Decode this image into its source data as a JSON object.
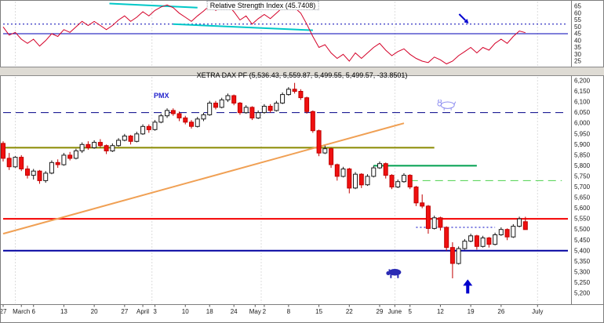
{
  "window": {
    "bg": "#ffffff",
    "band_bg": "#dedbd4"
  },
  "chart_data": [
    {
      "type": "line",
      "title": "Relative Strength Index (45.7408)",
      "ylim": [
        20,
        70
      ],
      "y_ticks": [
        65,
        60,
        55,
        50,
        45,
        40,
        35,
        30,
        25
      ],
      "grid": "month-vertical",
      "legend_position": "none",
      "series": [
        {
          "name": "RSI",
          "color": "#d40028",
          "values": [
            50,
            44,
            46,
            41,
            38,
            41,
            36,
            40,
            45,
            43,
            48,
            46,
            50,
            54,
            51,
            54,
            51,
            48,
            51,
            55,
            58,
            54,
            57,
            61,
            58,
            62,
            64.5,
            66,
            64,
            60,
            57,
            54,
            58,
            61.5,
            65.5,
            62,
            64,
            66,
            61,
            55,
            58,
            52,
            56,
            59,
            56,
            60,
            64,
            66,
            64,
            60,
            52,
            43,
            35,
            37,
            31,
            27,
            30,
            25,
            31,
            27,
            31,
            35,
            38,
            33,
            29,
            32,
            34,
            30,
            27,
            25,
            24,
            28,
            26,
            23,
            25,
            29,
            32,
            35,
            31,
            35,
            33,
            38,
            41,
            38,
            43,
            47,
            45.74
          ]
        }
      ],
      "overlays": {
        "hlines": [
          {
            "value": 52,
            "style": "dot",
            "color": "#0000b4",
            "from": 0,
            "to": 93,
            "width": 1,
            "name": "rsi-dotted-level"
          },
          {
            "value": 45,
            "style": "solid",
            "color": "#0000b4",
            "from": 0,
            "to": 93,
            "width": 1,
            "name": "rsi-solid-level"
          }
        ],
        "trendlines": [
          {
            "from": [
              17.5,
              67
            ],
            "to": [
              32,
              64
            ],
            "color": "#00c8c8",
            "width": 2,
            "name": "rsi-upper-trendline"
          },
          {
            "from": [
              28,
              52
            ],
            "to": [
              51,
              47.5
            ],
            "color": "#00c8c8",
            "width": 2,
            "name": "rsi-support-trendline"
          }
        ],
        "arrow": {
          "slot": 76,
          "value": 55,
          "direction": "down-right",
          "color": "#0000d0"
        }
      }
    },
    {
      "type": "candlestick",
      "title": "XETRA DAX PF (5,536.43, 5,559.87, 5,499.55, 5,499.57, -33.8501)",
      "corner_label": "PMX",
      "ylim": [
        5200,
        6200
      ],
      "y_ticks": [
        "6,200",
        "6,150",
        "6,100",
        "6,050",
        "6,000",
        "5,950",
        "5,900",
        "5,850",
        "5,800",
        "5,750",
        "5,700",
        "5,650",
        "5,600",
        "5,550",
        "5,500",
        "5,450",
        "5,400",
        "5,350",
        "5,300",
        "5,250",
        "5,200"
      ],
      "slots": 94,
      "grid_slots": [
        2,
        24.5,
        42.5,
        64.5,
        88
      ],
      "x_ticks": [
        {
          "label": "27",
          "slot": 0
        },
        {
          "label": "March",
          "slot": 3
        },
        {
          "label": "6",
          "slot": 5
        },
        {
          "label": "13",
          "slot": 10
        },
        {
          "label": "20",
          "slot": 15
        },
        {
          "label": "27",
          "slot": 20
        },
        {
          "label": "April",
          "slot": 23
        },
        {
          "label": "3",
          "slot": 25
        },
        {
          "label": "10",
          "slot": 30
        },
        {
          "label": "18",
          "slot": 34
        },
        {
          "label": "24",
          "slot": 38
        },
        {
          "label": "May",
          "slot": 41.5
        },
        {
          "label": "2",
          "slot": 43
        },
        {
          "label": "8",
          "slot": 47
        },
        {
          "label": "15",
          "slot": 52
        },
        {
          "label": "22",
          "slot": 57
        },
        {
          "label": "29",
          "slot": 62
        },
        {
          "label": "June",
          "slot": 64.5
        },
        {
          "label": "5",
          "slot": 67
        },
        {
          "label": "12",
          "slot": 72
        },
        {
          "label": "19",
          "slot": 77
        },
        {
          "label": "26",
          "slot": 82
        },
        {
          "label": "July",
          "slot": 88
        }
      ],
      "up_color": "#ffffff",
      "up_border": "#1a1a1a",
      "down_color": "#f01010",
      "down_border": "#c00000",
      "ohlc": [
        [
          5905,
          5915,
          5820,
          5835
        ],
        [
          5835,
          5860,
          5780,
          5795
        ],
        [
          5795,
          5845,
          5790,
          5840
        ],
        [
          5840,
          5850,
          5775,
          5785
        ],
        [
          5785,
          5800,
          5740,
          5755
        ],
        [
          5755,
          5785,
          5735,
          5775
        ],
        [
          5775,
          5780,
          5715,
          5730
        ],
        [
          5730,
          5775,
          5720,
          5765
        ],
        [
          5765,
          5825,
          5760,
          5815
        ],
        [
          5815,
          5830,
          5790,
          5805
        ],
        [
          5805,
          5860,
          5800,
          5850
        ],
        [
          5850,
          5865,
          5825,
          5835
        ],
        [
          5835,
          5880,
          5830,
          5870
        ],
        [
          5870,
          5910,
          5860,
          5900
        ],
        [
          5900,
          5915,
          5875,
          5885
        ],
        [
          5885,
          5920,
          5880,
          5910
        ],
        [
          5910,
          5925,
          5885,
          5895
        ],
        [
          5895,
          5900,
          5855,
          5870
        ],
        [
          5870,
          5905,
          5865,
          5895
        ],
        [
          5895,
          5930,
          5890,
          5920
        ],
        [
          5920,
          5950,
          5915,
          5940
        ],
        [
          5940,
          5945,
          5900,
          5915
        ],
        [
          5915,
          5960,
          5910,
          5950
        ],
        [
          5950,
          5995,
          5945,
          5985
        ],
        [
          5985,
          5995,
          5955,
          5970
        ],
        [
          5970,
          6015,
          5965,
          6005
        ],
        [
          6005,
          6045,
          6000,
          6035
        ],
        [
          6035,
          6070,
          6025,
          6060
        ],
        [
          6060,
          6070,
          6035,
          6045
        ],
        [
          6045,
          6055,
          6010,
          6025
        ],
        [
          6025,
          6035,
          5995,
          6005
        ],
        [
          6005,
          6015,
          5975,
          5985
        ],
        [
          5985,
          6030,
          5980,
          6020
        ],
        [
          6020,
          6050,
          6010,
          6040
        ],
        [
          6040,
          6105,
          6035,
          6095
        ],
        [
          6095,
          6105,
          6065,
          6075
        ],
        [
          6075,
          6120,
          6070,
          6110
        ],
        [
          6110,
          6140,
          6100,
          6130
        ],
        [
          6130,
          6135,
          6085,
          6095
        ],
        [
          6095,
          6100,
          6040,
          6050
        ],
        [
          6050,
          6085,
          6045,
          6075
        ],
        [
          6075,
          6080,
          6015,
          6025
        ],
        [
          6025,
          6060,
          6020,
          6050
        ],
        [
          6050,
          6090,
          6045,
          6080
        ],
        [
          6080,
          6090,
          6050,
          6060
        ],
        [
          6060,
          6105,
          6055,
          6095
        ],
        [
          6095,
          6145,
          6090,
          6135
        ],
        [
          6135,
          6170,
          6130,
          6160
        ],
        [
          6160,
          6190,
          6140,
          6150
        ],
        [
          6150,
          6160,
          6110,
          6120
        ],
        [
          6120,
          6125,
          6045,
          6055
        ],
        [
          6055,
          6060,
          5955,
          5965
        ],
        [
          5965,
          5970,
          5845,
          5860
        ],
        [
          5860,
          5895,
          5855,
          5880
        ],
        [
          5880,
          5885,
          5790,
          5805
        ],
        [
          5805,
          5810,
          5730,
          5750
        ],
        [
          5750,
          5795,
          5745,
          5785
        ],
        [
          5785,
          5790,
          5670,
          5695
        ],
        [
          5695,
          5770,
          5690,
          5760
        ],
        [
          5760,
          5765,
          5695,
          5710
        ],
        [
          5710,
          5760,
          5705,
          5750
        ],
        [
          5750,
          5800,
          5745,
          5790
        ],
        [
          5790,
          5820,
          5785,
          5810
        ],
        [
          5810,
          5815,
          5740,
          5755
        ],
        [
          5755,
          5760,
          5690,
          5700
        ],
        [
          5700,
          5735,
          5695,
          5725
        ],
        [
          5725,
          5765,
          5720,
          5755
        ],
        [
          5755,
          5760,
          5690,
          5700
        ],
        [
          5700,
          5705,
          5610,
          5625
        ],
        [
          5625,
          5665,
          5600,
          5610
        ],
        [
          5610,
          5615,
          5480,
          5505
        ],
        [
          5505,
          5565,
          5500,
          5555
        ],
        [
          5555,
          5560,
          5495,
          5510
        ],
        [
          5510,
          5515,
          5400,
          5415
        ],
        [
          5415,
          5440,
          5270,
          5340
        ],
        [
          5340,
          5420,
          5335,
          5410
        ],
        [
          5410,
          5455,
          5405,
          5445
        ],
        [
          5445,
          5480,
          5440,
          5470
        ],
        [
          5470,
          5475,
          5405,
          5420
        ],
        [
          5420,
          5470,
          5415,
          5460
        ],
        [
          5460,
          5465,
          5415,
          5430
        ],
        [
          5430,
          5485,
          5425,
          5475
        ],
        [
          5475,
          5510,
          5470,
          5500
        ],
        [
          5500,
          5505,
          5450,
          5465
        ],
        [
          5465,
          5525,
          5460,
          5515
        ],
        [
          5515,
          5560,
          5510,
          5550
        ],
        [
          5536.43,
          5559.87,
          5499.55,
          5499.57
        ]
      ],
      "overlays": {
        "hlines": [
          {
            "value": 6050,
            "style": "dash",
            "color": "#000088",
            "from": 0,
            "to": 93,
            "width": 1,
            "name": "navy-dashed-resistance"
          },
          {
            "value": 5885,
            "style": "solid",
            "color": "#8a8a00",
            "from": 0,
            "to": 71,
            "width": 2,
            "name": "olive-level-line"
          },
          {
            "value": 5800,
            "style": "solid",
            "color": "#00a050",
            "from": 61,
            "to": 78,
            "width": 2,
            "name": "green-level-line"
          },
          {
            "value": 5730,
            "style": "dash",
            "color": "#4ad04a",
            "from": 67,
            "to": 92,
            "width": 1,
            "name": "green-dashed-level"
          },
          {
            "value": 5550,
            "style": "solid",
            "color": "#f40000",
            "from": 0,
            "to": 93,
            "width": 2,
            "name": "red-support-line"
          },
          {
            "value": 5400,
            "style": "solid",
            "color": "#0000a0",
            "from": 0,
            "to": 93,
            "width": 2,
            "name": "navy-support-line"
          },
          {
            "value": 5510,
            "style": "dot",
            "color": "#0000c0",
            "from": 68,
            "to": 81,
            "width": 1,
            "name": "navy-dotted-level"
          }
        ],
        "trendlines": [
          {
            "from": [
              0,
              5480
            ],
            "to": [
              66,
              6000
            ],
            "color": "#f0a054",
            "width": 2,
            "name": "orange-trendline"
          }
        ],
        "annotations": [
          {
            "kind": "bear",
            "slot": 64.5,
            "value": 5295
          },
          {
            "kind": "bull",
            "slot": 73,
            "value": 6085
          },
          {
            "kind": "up-arrow",
            "slot": 76.5,
            "value": 5265
          }
        ]
      }
    }
  ]
}
